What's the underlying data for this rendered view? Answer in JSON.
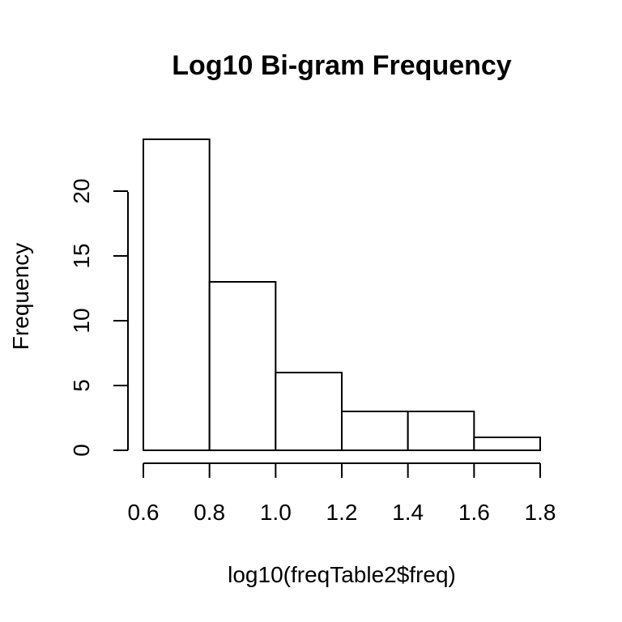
{
  "chart_data": {
    "type": "bar",
    "title": "Log10 Bi-gram Frequency",
    "xlabel": "log10(freqTable2$freq)",
    "ylabel": "Frequency",
    "bins": [
      {
        "from": 0.6,
        "to": 0.8,
        "count": 24
      },
      {
        "from": 0.8,
        "to": 1.0,
        "count": 13
      },
      {
        "from": 1.0,
        "to": 1.2,
        "count": 6
      },
      {
        "from": 1.2,
        "to": 1.4,
        "count": 3
      },
      {
        "from": 1.4,
        "to": 1.6,
        "count": 3
      },
      {
        "from": 1.6,
        "to": 1.8,
        "count": 1
      }
    ],
    "x_ticks": [
      "0.6",
      "0.8",
      "1.0",
      "1.2",
      "1.4",
      "1.6",
      "1.8"
    ],
    "y_ticks": [
      "0",
      "5",
      "10",
      "15",
      "20"
    ],
    "xlim": [
      0.6,
      1.8
    ],
    "ylim": [
      0,
      24
    ],
    "grid": false,
    "bar_fill": "#ffffff",
    "bar_stroke": "#000000"
  }
}
